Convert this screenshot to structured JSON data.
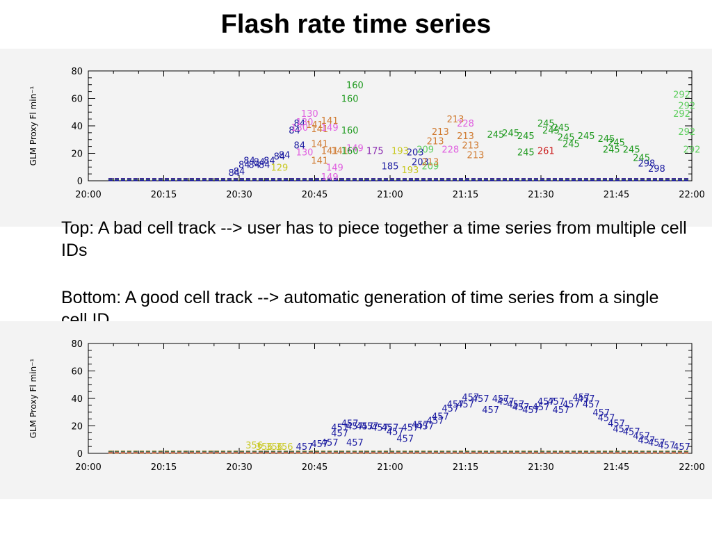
{
  "title": "Flash rate time series",
  "captions": {
    "top": "Top: A bad cell track --> user has to piece together a time series from multiple cell IDs",
    "bottom": "Bottom: A good cell track --> automatic generation of time series from a single cell ID"
  },
  "colors": {
    "panel_background": "#f3f3f3",
    "blue": "#1a1aa0",
    "green": "#1f9a1f",
    "light_green": "#5fcf5f",
    "orange": "#d07a30",
    "pink": "#e060e0",
    "purple": "#8a2ab0",
    "yellow": "#c8c820",
    "red": "#cc2020"
  },
  "chart_data": [
    {
      "type": "scatter",
      "title": "",
      "xlabel": "",
      "ylabel": "GLM Proxy  Fl  min⁻¹",
      "xlim": [
        "20:00",
        "22:00"
      ],
      "ylim": [
        0,
        80
      ],
      "x_ticks": [
        "20:00",
        "20:15",
        "20:30",
        "20:45",
        "21:00",
        "21:15",
        "21:30",
        "21:45",
        "22:00"
      ],
      "y_ticks": [
        "0",
        "20",
        "40",
        "60",
        "80"
      ],
      "baseline_labels_at_zero": true,
      "series": [
        {
          "label": "84",
          "color": "#1a1aa0",
          "points": [
            [
              "20:29",
              6
            ],
            [
              "20:30",
              7
            ],
            [
              "20:31",
              12
            ],
            [
              "20:32",
              15
            ],
            [
              "20:33",
              12
            ],
            [
              "20:34",
              14
            ],
            [
              "20:35",
              12
            ],
            [
              "20:36",
              15
            ],
            [
              "20:38",
              18
            ],
            [
              "20:39",
              19
            ],
            [
              "20:41",
              37
            ],
            [
              "20:42",
              42
            ],
            [
              "20:42",
              26
            ]
          ]
        },
        {
          "label": "130",
          "color": "#e060e0",
          "points": [
            [
              "20:42",
              39
            ],
            [
              "20:44",
              49
            ],
            [
              "20:43",
              21
            ],
            [
              "20:43",
              43
            ]
          ]
        },
        {
          "label": "141",
          "color": "#d07a30",
          "points": [
            [
              "20:45",
              41
            ],
            [
              "20:46",
              27
            ],
            [
              "20:46",
              38
            ],
            [
              "20:46",
              15
            ],
            [
              "20:48",
              44
            ],
            [
              "20:48",
              22
            ],
            [
              "20:50",
              22
            ]
          ]
        },
        {
          "label": "149",
          "color": "#e060e0",
          "points": [
            [
              "20:48",
              39
            ],
            [
              "20:49",
              10
            ],
            [
              "20:48",
              3
            ],
            [
              "20:53",
              24
            ]
          ]
        },
        {
          "label": "160",
          "color": "#1f9a1f",
          "points": [
            [
              "20:53",
              70
            ],
            [
              "20:52",
              60
            ],
            [
              "20:52",
              37
            ],
            [
              "20:52",
              22
            ]
          ]
        },
        {
          "label": "175",
          "color": "#8a2ab0",
          "points": [
            [
              "20:57",
              22
            ]
          ]
        },
        {
          "label": "185",
          "color": "#1a1aa0",
          "points": [
            [
              "21:00",
              11
            ]
          ]
        },
        {
          "label": "129",
          "color": "#c8c820",
          "points": [
            [
              "20:38",
              10
            ]
          ]
        },
        {
          "label": "193",
          "color": "#c8c820",
          "points": [
            [
              "21:02",
              22
            ],
            [
              "21:04",
              8
            ]
          ]
        },
        {
          "label": "203",
          "color": "#1a1aa0",
          "points": [
            [
              "21:05",
              21
            ],
            [
              "21:06",
              14
            ]
          ]
        },
        {
          "label": "209",
          "color": "#5fcf5f",
          "points": [
            [
              "21:07",
              23
            ],
            [
              "21:08",
              11
            ]
          ]
        },
        {
          "label": "213",
          "color": "#d07a30",
          "points": [
            [
              "21:08",
              14
            ],
            [
              "21:09",
              29
            ],
            [
              "21:10",
              36
            ],
            [
              "21:13",
              45
            ],
            [
              "21:15",
              33
            ],
            [
              "21:16",
              26
            ],
            [
              "21:17",
              19
            ]
          ]
        },
        {
          "label": "228",
          "color": "#e060e0",
          "points": [
            [
              "21:12",
              23
            ],
            [
              "21:15",
              42
            ]
          ]
        },
        {
          "label": "245",
          "color": "#1f9a1f",
          "points": [
            [
              "21:21",
              34
            ],
            [
              "21:24",
              35
            ],
            [
              "21:27",
              33
            ],
            [
              "21:27",
              21
            ],
            [
              "21:31",
              42
            ],
            [
              "21:32",
              37
            ],
            [
              "21:34",
              39
            ],
            [
              "21:35",
              32
            ],
            [
              "21:36",
              27
            ],
            [
              "21:39",
              33
            ],
            [
              "21:43",
              31
            ],
            [
              "21:44",
              23
            ],
            [
              "21:45",
              28
            ],
            [
              "21:48",
              23
            ],
            [
              "21:50",
              17
            ]
          ]
        },
        {
          "label": "261",
          "color": "#cc2020",
          "points": [
            [
              "21:31",
              22
            ]
          ]
        },
        {
          "label": "292",
          "color": "#5fcf5f",
          "points": [
            [
              "21:58",
              63
            ],
            [
              "21:59",
              55
            ],
            [
              "21:58",
              49
            ],
            [
              "21:59",
              36
            ],
            [
              "22:00",
              23
            ]
          ]
        },
        {
          "label": "298",
          "color": "#1a1aa0",
          "points": [
            [
              "21:51",
              13
            ],
            [
              "21:53",
              9
            ]
          ]
        }
      ]
    },
    {
      "type": "scatter",
      "title": "",
      "xlabel": "",
      "ylabel": "GLM Proxy  Fl  min⁻¹",
      "xlim": [
        "20:00",
        "22:00"
      ],
      "ylim": [
        0,
        80
      ],
      "x_ticks": [
        "20:00",
        "20:15",
        "20:30",
        "20:45",
        "21:00",
        "21:15",
        "21:30",
        "21:45",
        "22:00"
      ],
      "y_ticks": [
        "0",
        "20",
        "40",
        "60",
        "80"
      ],
      "baseline_labels_at_zero": true,
      "series": [
        {
          "label": "356",
          "color": "#c8c820",
          "points": [
            [
              "20:33",
              6
            ],
            [
              "20:35",
              5
            ],
            [
              "20:37",
              5
            ],
            [
              "20:39",
              5
            ]
          ]
        },
        {
          "label": "457",
          "color": "#1a1aa0",
          "points": [
            [
              "20:43",
              5
            ],
            [
              "20:46",
              7
            ],
            [
              "20:48",
              8
            ],
            [
              "20:50",
              15
            ],
            [
              "20:50",
              19
            ],
            [
              "20:52",
              22
            ],
            [
              "20:53",
              8
            ],
            [
              "20:53",
              20
            ],
            [
              "20:55",
              20
            ],
            [
              "20:56",
              20
            ],
            [
              "20:58",
              19
            ],
            [
              "21:00",
              19
            ],
            [
              "21:01",
              16
            ],
            [
              "21:03",
              11
            ],
            [
              "21:04",
              19
            ],
            [
              "21:06",
              21
            ],
            [
              "21:07",
              20
            ],
            [
              "21:09",
              24
            ],
            [
              "21:10",
              27
            ],
            [
              "21:12",
              33
            ],
            [
              "21:13",
              36
            ],
            [
              "21:15",
              36
            ],
            [
              "21:16",
              41
            ],
            [
              "21:18",
              40
            ],
            [
              "21:20",
              32
            ],
            [
              "21:22",
              40
            ],
            [
              "21:23",
              38
            ],
            [
              "21:25",
              36
            ],
            [
              "21:26",
              34
            ],
            [
              "21:28",
              32
            ],
            [
              "21:30",
              34
            ],
            [
              "21:31",
              38
            ],
            [
              "21:33",
              38
            ],
            [
              "21:34",
              32
            ],
            [
              "21:36",
              36
            ],
            [
              "21:38",
              41
            ],
            [
              "21:39",
              40
            ],
            [
              "21:40",
              36
            ],
            [
              "21:42",
              30
            ],
            [
              "21:43",
              26
            ],
            [
              "21:45",
              22
            ],
            [
              "21:46",
              18
            ],
            [
              "21:48",
              16
            ],
            [
              "21:50",
              13
            ],
            [
              "21:51",
              10
            ],
            [
              "21:53",
              8
            ],
            [
              "21:55",
              6
            ],
            [
              "21:58",
              5
            ]
          ]
        }
      ]
    }
  ]
}
